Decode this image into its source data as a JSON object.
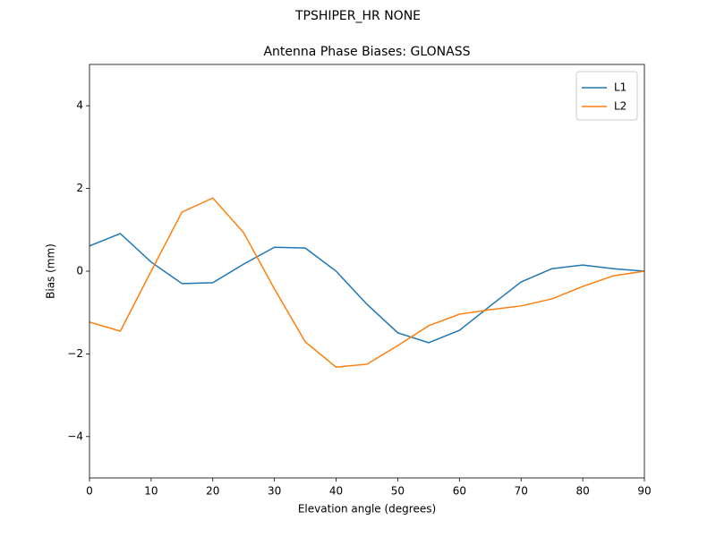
{
  "chart_data": {
    "type": "line",
    "suptitle": "TPSHIPER_HR     NONE",
    "title": "Antenna Phase Biases: GLONASS",
    "x_label": "Elevation angle (degrees)",
    "y_label": "Bias (mm)",
    "x": [
      0,
      5,
      10,
      15,
      20,
      25,
      30,
      35,
      40,
      45,
      50,
      55,
      60,
      65,
      70,
      75,
      80,
      85,
      90
    ],
    "series": [
      {
        "name": "L1",
        "color": "#1f77b4",
        "values": [
          0.61,
          0.91,
          0.22,
          -0.3,
          -0.28,
          0.17,
          0.58,
          0.56,
          0.0,
          -0.8,
          -1.49,
          -1.73,
          -1.43,
          -0.84,
          -0.26,
          0.06,
          0.15,
          0.06,
          0.0
        ]
      },
      {
        "name": "L2",
        "color": "#ff7f0e",
        "values": [
          -1.23,
          -1.45,
          0.0,
          1.43,
          1.77,
          0.93,
          -0.43,
          -1.71,
          -2.32,
          -2.25,
          -1.8,
          -1.32,
          -1.04,
          -0.93,
          -0.84,
          -0.67,
          -0.37,
          -0.11,
          0.0
        ]
      }
    ],
    "xlim": [
      0,
      90
    ],
    "xticks": [
      0,
      10,
      20,
      30,
      40,
      50,
      60,
      70,
      80,
      90
    ],
    "ylim": [
      -5,
      5
    ],
    "yticks": [
      {
        "value": -4,
        "label": "−4"
      },
      {
        "value": -2,
        "label": "−2"
      },
      0,
      2,
      4
    ],
    "legend": "upper right",
    "grid": false
  }
}
